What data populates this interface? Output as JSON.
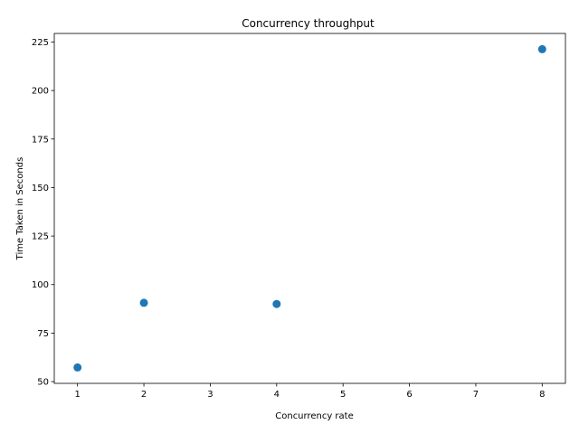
{
  "chart_data": {
    "type": "scatter",
    "title": "Concurrency throughput",
    "xlabel": "Concurrency rate",
    "ylabel": "Time Taken in Seconds",
    "x": [
      1,
      2,
      4,
      8
    ],
    "y": [
      57.3,
      90.6,
      90.0,
      221.3
    ],
    "xlim": [
      0.65,
      8.35
    ],
    "ylim": [
      49.1,
      229.4
    ],
    "xticks": [
      1,
      2,
      3,
      4,
      5,
      6,
      7,
      8
    ],
    "yticks": [
      50,
      75,
      100,
      125,
      150,
      175,
      200,
      225
    ],
    "marker_color": "#1f77b4",
    "grid": false,
    "legend": "none"
  }
}
